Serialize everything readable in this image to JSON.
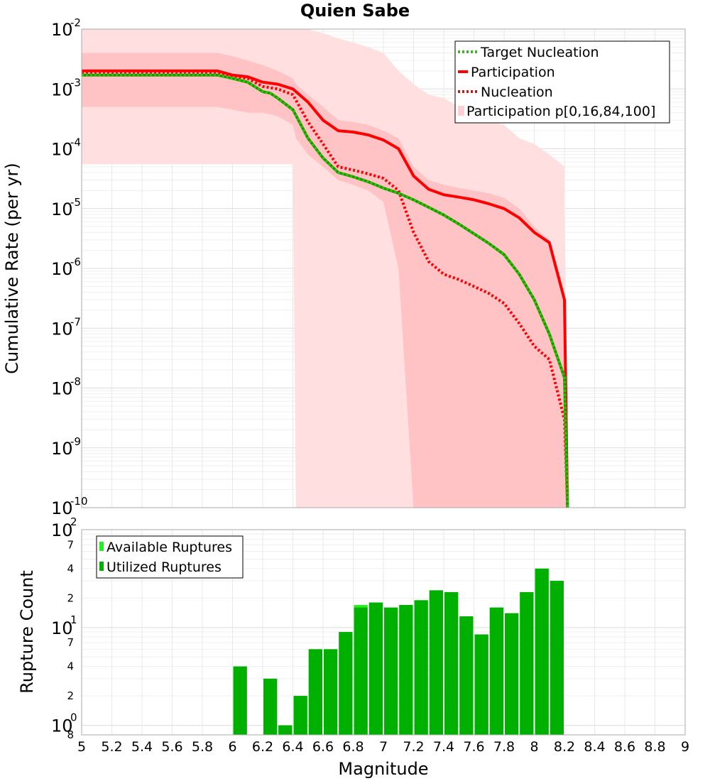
{
  "title": "Quien Sabe",
  "chart_data": [
    {
      "type": "line",
      "ylabel": "Cumulative Rate (per yr)",
      "xlim": [
        5,
        9
      ],
      "ylim": [
        1e-10,
        0.01
      ],
      "yscale": "log",
      "grid": true,
      "legend_position": "top-right",
      "y_tick_labels": [
        {
          "base": "10",
          "exp": "-2"
        },
        {
          "base": "10",
          "exp": "-3"
        },
        {
          "base": "10",
          "exp": "-4"
        },
        {
          "base": "10",
          "exp": "-5"
        },
        {
          "base": "10",
          "exp": "-6"
        },
        {
          "base": "10",
          "exp": "-7"
        },
        {
          "base": "10",
          "exp": "-8"
        },
        {
          "base": "10",
          "exp": "-9"
        },
        {
          "base": "10",
          "exp": "-10"
        }
      ],
      "legend": [
        "Target Nucleation",
        "Participation",
        "Nucleation",
        "Participation p[0,16,84,100]"
      ],
      "colors": {
        "target": "#2e8b00",
        "target_dots": "#22cc00",
        "participation": "#ff0000",
        "band_outer": "#ffdfe0",
        "band_inner": "#ffc2c5"
      },
      "series": [
        {
          "name": "Target Nucleation",
          "style": "dotted",
          "x": [
            5.0,
            5.9,
            6.0,
            6.1,
            6.2,
            6.25,
            6.3,
            6.4,
            6.5,
            6.6,
            6.7,
            6.8,
            6.9,
            7.0,
            7.1,
            7.2,
            7.3,
            7.4,
            7.5,
            7.6,
            7.7,
            7.8,
            7.9,
            8.0,
            8.1,
            8.2,
            8.22
          ],
          "y": [
            0.0017,
            0.0017,
            0.0015,
            0.0013,
            0.0009,
            0.00085,
            0.0007,
            0.00045,
            0.00015,
            7e-05,
            4e-05,
            3.4e-05,
            2.8e-05,
            2.2e-05,
            1.8e-05,
            1.4e-05,
            1.05e-05,
            7.8e-06,
            5.5e-06,
            3.8e-06,
            2.6e-06,
            1.7e-06,
            8e-07,
            3e-07,
            8e-08,
            1.5e-08,
            1e-10
          ]
        },
        {
          "name": "Participation",
          "style": "solid",
          "x": [
            5.0,
            5.9,
            6.0,
            6.1,
            6.2,
            6.3,
            6.4,
            6.5,
            6.6,
            6.7,
            6.8,
            6.9,
            7.0,
            7.1,
            7.2,
            7.3,
            7.4,
            7.5,
            7.6,
            7.7,
            7.8,
            7.9,
            8.0,
            8.1,
            8.2,
            8.22
          ],
          "y": [
            0.002,
            0.002,
            0.0017,
            0.0016,
            0.0013,
            0.0012,
            0.001,
            0.0006,
            0.0003,
            0.0002,
            0.00019,
            0.00017,
            0.00014,
            0.0001,
            3.5e-05,
            2.1e-05,
            1.7e-05,
            1.55e-05,
            1.4e-05,
            1.2e-05,
            1e-05,
            7e-06,
            4e-06,
            2.7e-06,
            3e-07,
            1e-10
          ]
        },
        {
          "name": "Nucleation",
          "style": "dotted",
          "x": [
            5.0,
            5.9,
            6.0,
            6.1,
            6.2,
            6.3,
            6.4,
            6.5,
            6.6,
            6.7,
            6.8,
            6.9,
            7.0,
            7.1,
            7.2,
            7.3,
            7.4,
            7.5,
            7.6,
            7.7,
            7.8,
            7.9,
            8.0,
            8.1,
            8.2,
            8.22
          ],
          "y": [
            0.0018,
            0.0018,
            0.0016,
            0.0015,
            0.0011,
            0.001,
            0.0008,
            0.00028,
            0.00012,
            5e-05,
            4.4e-05,
            3.8e-05,
            3.2e-05,
            2e-05,
            4e-06,
            1.3e-06,
            8e-07,
            6.5e-07,
            5e-07,
            3.8e-07,
            2.6e-07,
            1.2e-07,
            5e-08,
            3e-08,
            3e-09,
            1e-10
          ]
        },
        {
          "name": "Participation p[0,16,84,100]",
          "style": "band",
          "x": [
            5.0,
            5.2,
            5.4,
            5.6,
            5.8,
            5.9,
            6.0,
            6.1,
            6.2,
            6.3,
            6.4,
            6.42,
            6.5,
            6.6,
            6.7,
            6.8,
            6.9,
            7.0,
            7.1,
            7.2,
            7.3,
            7.4,
            7.5,
            7.6,
            7.7,
            7.8,
            7.9,
            8.0,
            8.1,
            8.2,
            8.22
          ],
          "p0": [
            5.5e-05,
            5.5e-05,
            5.5e-05,
            5.5e-05,
            5.5e-05,
            5.5e-05,
            5.5e-05,
            5.5e-05,
            5.5e-05,
            5.5e-05,
            5.5e-05,
            1e-10,
            1e-10,
            1e-10,
            1e-10,
            1e-10,
            1e-10,
            1e-10,
            1e-10,
            1e-10,
            1e-10,
            1e-10,
            1e-10,
            1e-10,
            1e-10,
            1e-10,
            1e-10,
            1e-10,
            1e-10,
            1e-10,
            1e-10
          ],
          "p16": [
            0.0005,
            0.0005,
            0.0005,
            0.0005,
            0.0005,
            0.0005,
            0.00045,
            0.0004,
            0.0004,
            0.00035,
            0.00025,
            0.00015,
            8e-05,
            5e-05,
            3e-05,
            2.5e-05,
            2e-05,
            1.3e-05,
            1e-06,
            1e-10,
            1e-10,
            1e-10,
            1e-10,
            1e-10,
            1e-10,
            1e-10,
            1e-10,
            1e-10,
            1e-10,
            1e-10,
            1e-10
          ],
          "p84": [
            0.004,
            0.004,
            0.004,
            0.004,
            0.004,
            0.004,
            0.0035,
            0.003,
            0.0025,
            0.002,
            0.0015,
            0.0012,
            0.0008,
            0.0005,
            0.0003,
            0.00028,
            0.00025,
            0.0002,
            0.00015,
            5e-05,
            3e-05,
            2.5e-05,
            2.2e-05,
            2e-05,
            1.8e-05,
            1.5e-05,
            1e-05,
            5e-06,
            3e-06,
            3e-07,
            1e-10
          ],
          "p100": [
            0.01,
            0.01,
            0.01,
            0.01,
            0.01,
            0.01,
            0.01,
            0.01,
            0.01,
            0.01,
            0.01,
            0.01,
            0.01,
            0.0085,
            0.007,
            0.006,
            0.005,
            0.004,
            0.002,
            0.0012,
            0.0008,
            0.0007,
            0.0005,
            0.0004,
            0.0003,
            0.00025,
            0.00015,
            0.00012,
            8e-05,
            5e-05,
            1e-10
          ]
        }
      ]
    },
    {
      "type": "bar",
      "xlabel": "Magnitude",
      "ylabel": "Rupture Count",
      "xlim": [
        5,
        9
      ],
      "ylim": [
        0.8,
        100
      ],
      "yscale": "log",
      "grid": true,
      "legend_position": "top-left",
      "x_ticks": [
        "5",
        "5.2",
        "5.4",
        "5.6",
        "5.8",
        "6",
        "6.2",
        "6.4",
        "6.6",
        "6.8",
        "7",
        "7.2",
        "7.4",
        "7.6",
        "7.8",
        "8",
        "8.2",
        "8.4",
        "8.6",
        "8.8",
        "9"
      ],
      "y_decade_labels": [
        {
          "value": 100,
          "base": "10",
          "exp": "2"
        },
        {
          "value": 10,
          "base": "10",
          "exp": "1"
        },
        {
          "value": 1,
          "base": "10",
          "exp": "0"
        }
      ],
      "y_minor_labels": [
        "7",
        "4",
        "2",
        "7",
        "4",
        "2",
        "8"
      ],
      "y_minor_values": [
        70,
        40,
        20,
        7,
        4,
        2,
        0.8
      ],
      "legend": [
        "Available Ruptures",
        "Utilized Ruptures"
      ],
      "colors": {
        "available": "#22ee22",
        "utilized": "#00b000"
      },
      "bin_width": 0.1,
      "x": [
        6.05,
        6.15,
        6.25,
        6.35,
        6.45,
        6.55,
        6.65,
        6.75,
        6.85,
        6.95,
        7.05,
        7.15,
        7.25,
        7.35,
        7.45,
        7.55,
        7.65,
        7.75,
        7.85,
        7.95,
        8.05,
        8.15
      ],
      "series": [
        {
          "name": "Available Ruptures",
          "values": [
            4,
            0,
            3,
            1,
            2,
            6,
            6,
            9,
            17,
            18,
            16,
            17,
            19,
            24,
            23,
            13,
            8.5,
            16,
            14,
            23,
            40,
            30
          ]
        },
        {
          "name": "Utilized Ruptures",
          "values": [
            4,
            0,
            3,
            1,
            2,
            6,
            6,
            9,
            16,
            18,
            16,
            17,
            19,
            24,
            23,
            13,
            8.5,
            16,
            14,
            23,
            40,
            30
          ]
        }
      ]
    }
  ]
}
